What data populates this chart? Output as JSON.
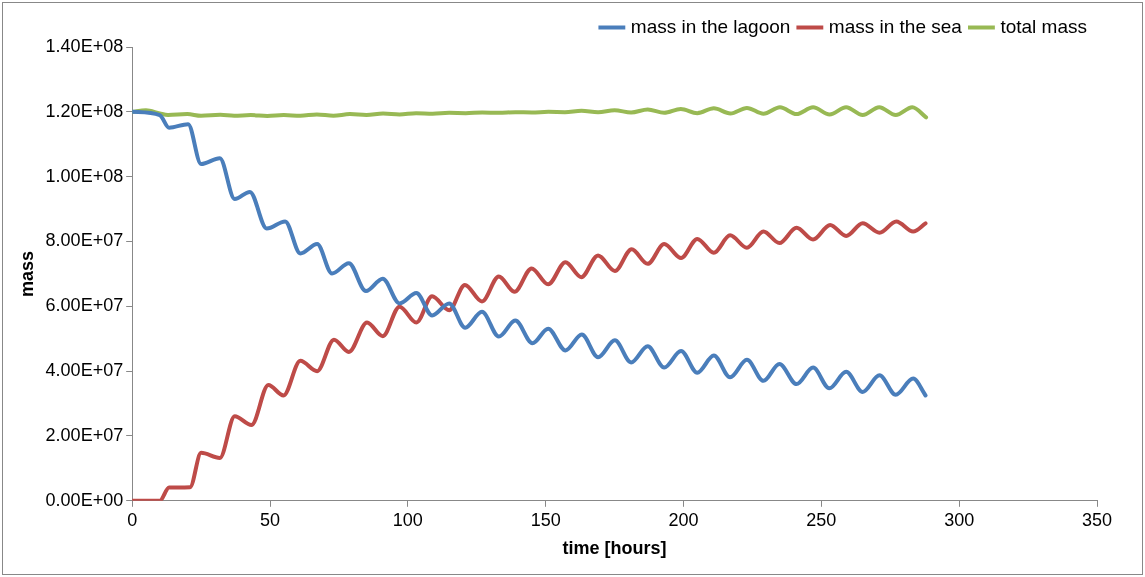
{
  "chart_data": {
    "type": "line",
    "xlabel": "time [hours]",
    "ylabel": "mass",
    "xlim": [
      0,
      350
    ],
    "xticks": [
      0,
      50,
      100,
      150,
      200,
      250,
      300,
      350
    ],
    "ylim": [
      0,
      140000000.0
    ],
    "yticks": [
      {
        "value": 0,
        "label": "0.00E+00"
      },
      {
        "value": 20000000.0,
        "label": "2.00E+07"
      },
      {
        "value": 40000000.0,
        "label": "4.00E+07"
      },
      {
        "value": 60000000.0,
        "label": "6.00E+07"
      },
      {
        "value": 80000000.0,
        "label": "8.00E+07"
      },
      {
        "value": 100000000.0,
        "label": "1.00E+08"
      },
      {
        "value": 120000000.0,
        "label": "1.20E+08"
      },
      {
        "value": 140000000.0,
        "label": "1.40E+08"
      }
    ],
    "grid": false,
    "legend": "top right",
    "marker": "none",
    "line_style": "solid",
    "series": [
      {
        "name": "mass in the lagoon",
        "color": "#4a7ebb",
        "x": [
          0,
          10,
          13.4,
          20.3,
          25,
          31.8,
          37.2,
          42.7,
          48.8,
          55.5,
          61,
          67.1,
          72.5,
          78.6,
          84.8,
          90.9,
          97,
          103.1,
          108.8,
          115,
          120.8,
          126.9,
          133,
          139,
          145.2,
          150.9,
          157.2,
          163.1,
          169,
          175.1,
          181,
          187,
          193,
          199.1,
          205,
          211,
          216.9,
          223,
          229,
          234.8,
          241,
          247,
          252.9,
          259,
          265,
          271.1,
          277,
          283.3,
          287.8
        ],
        "values": [
          120000000.0,
          119000000.0,
          115100000.0,
          116200000.0,
          103900000.0,
          105700000.0,
          93100000.0,
          95300000.0,
          84000000.0,
          86200000.0,
          76300000.0,
          79200000.0,
          70100000.0,
          73300000.0,
          64700000.0,
          68500000.0,
          60900000.0,
          64100000.0,
          57200000.0,
          60900000.0,
          53400000.0,
          58300000.0,
          50700000.0,
          55600000.0,
          48600000.0,
          53100000.0,
          46400000.0,
          51300000.0,
          44300000.0,
          49500000.0,
          42700000.0,
          47700000.0,
          41100000.0,
          46200000.0,
          39500000.0,
          44800000.0,
          38100000.0,
          43500000.0,
          37000000.0,
          42200000.0,
          36000000.0,
          41100000.0,
          34700000.0,
          39800000.0,
          33600000.0,
          38700000.0,
          32700000.0,
          37700000.0,
          32500000.0
        ]
      },
      {
        "name": "mass in the sea",
        "color": "#be4b48",
        "x": [
          0,
          10,
          13.4,
          21,
          25,
          31.8,
          37.2,
          43.3,
          49.4,
          54.9,
          61,
          67.1,
          73.2,
          78.6,
          85.2,
          90.9,
          97,
          103.1,
          108.8,
          115,
          120.7,
          126.9,
          133,
          138.7,
          144.9,
          150.9,
          157.2,
          162.9,
          169,
          175.1,
          181.2,
          187,
          193,
          199.1,
          205,
          211,
          216.9,
          223,
          229,
          234.8,
          241,
          247,
          253.2,
          259,
          265,
          271.1,
          277.2,
          283.3,
          287.8
        ],
        "values": [
          0,
          0,
          4100000.0,
          4200000.0,
          14800000.0,
          13200000.0,
          26100000.0,
          23400000.0,
          35700000.0,
          32500000.0,
          43200000.0,
          40000000.0,
          49700000.0,
          45900000.0,
          55000000.0,
          50800000.0,
          59900000.0,
          55000000.0,
          63100000.0,
          58800000.0,
          66600000.0,
          61500000.0,
          69200000.0,
          64500000.0,
          71700000.0,
          66800000.0,
          73600000.0,
          69000000.0,
          75700000.0,
          70900000.0,
          77600000.0,
          73100000.0,
          79200000.0,
          74900000.0,
          80800000.0,
          76500000.0,
          81900000.0,
          78100000.0,
          83100000.0,
          79500000.0,
          84200000.0,
          80600000.0,
          85100000.0,
          81700000.0,
          85600000.0,
          82700000.0,
          86200000.0,
          83100000.0,
          85600000.0
        ]
      },
      {
        "name": "total mass",
        "color": "#98b954",
        "x": [
          0,
          5,
          10,
          13,
          20,
          25,
          32,
          37,
          43,
          49,
          55,
          61,
          67,
          73,
          79,
          85,
          91,
          97,
          103,
          109,
          115,
          121,
          127,
          133,
          139,
          145,
          151,
          157,
          163,
          169,
          175,
          181,
          187,
          193,
          199,
          205,
          211,
          217,
          223,
          229,
          235,
          241,
          247,
          253,
          259,
          265,
          271,
          277,
          283,
          288
        ],
        "values": [
          120000000.0,
          120500000.0,
          119500000.0,
          119000000.0,
          119300000.0,
          118800000.0,
          119100000.0,
          118800000.0,
          119000000.0,
          118700000.0,
          119000000.0,
          118800000.0,
          119200000.0,
          118800000.0,
          119300000.0,
          119000000.0,
          119500000.0,
          119200000.0,
          119600000.0,
          119400000.0,
          119700000.0,
          119600000.0,
          119800000.0,
          119700000.0,
          119900000.0,
          119800000.0,
          120000000.0,
          119900000.0,
          120300000.0,
          119900000.0,
          120500000.0,
          119800000.0,
          120700000.0,
          119700000.0,
          120900000.0,
          119600000.0,
          121100000.0,
          119500000.0,
          121200000.0,
          119400000.0,
          121400000.0,
          119300000.0,
          121400000.0,
          119200000.0,
          121400000.0,
          119000000.0,
          121400000.0,
          119000000.0,
          121400000.0,
          118300000.0
        ]
      }
    ]
  }
}
